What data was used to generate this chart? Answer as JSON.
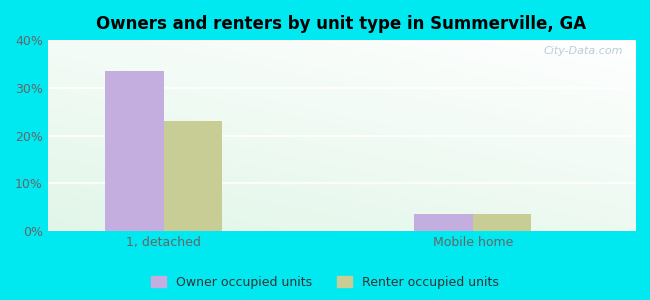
{
  "title": "Owners and renters by unit type in Summerville, GA",
  "categories": [
    "1, detached",
    "Mobile home"
  ],
  "owner_values": [
    33.5,
    3.5
  ],
  "renter_values": [
    23.0,
    3.5
  ],
  "owner_color": "#c4aee0",
  "renter_color": "#c8cd96",
  "background_outer": "#00e8f0",
  "ylim": [
    0,
    40
  ],
  "yticks": [
    0,
    10,
    20,
    30,
    40
  ],
  "bar_width": 0.38,
  "group_positions": [
    0.75,
    2.75
  ],
  "xlim": [
    0.0,
    3.8
  ],
  "legend_labels": [
    "Owner occupied units",
    "Renter occupied units"
  ],
  "watermark": "City-Data.com"
}
